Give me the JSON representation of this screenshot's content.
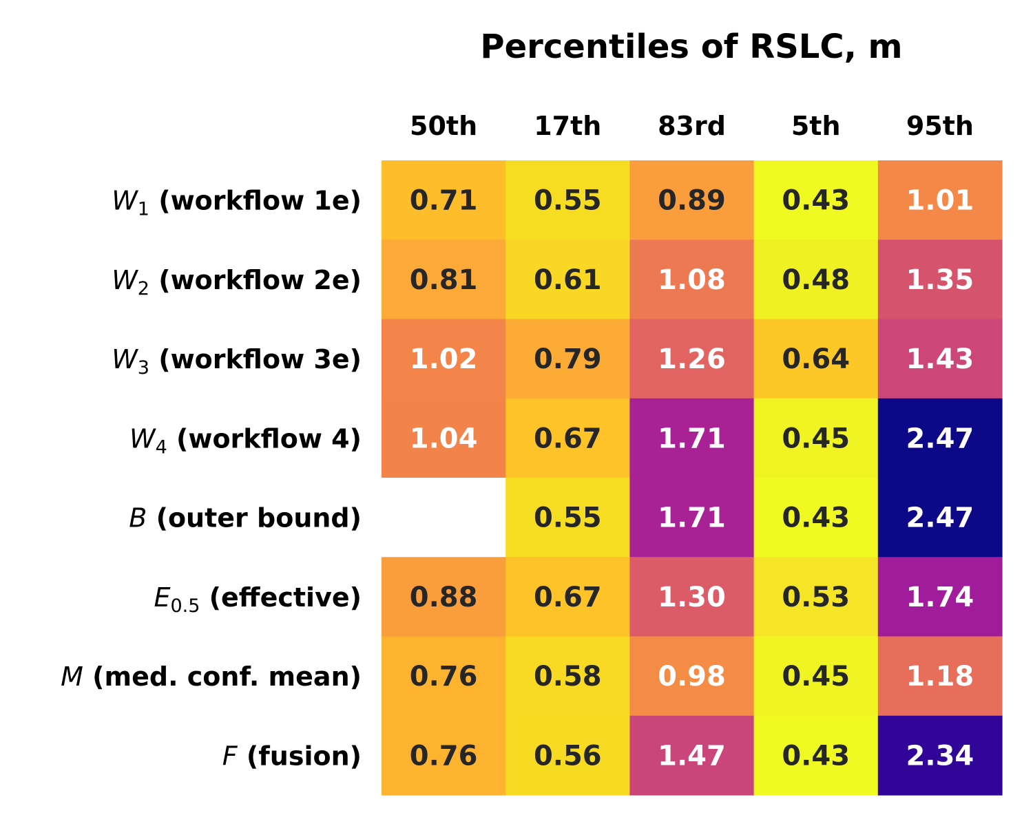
{
  "chart_data": {
    "type": "heatmap",
    "title": "Percentiles of RSLC, m",
    "columns": [
      "50th",
      "17th",
      "83rd",
      "5th",
      "95th"
    ],
    "rows": [
      {
        "symbol": "W",
        "subscript": "1",
        "description": "(workflow 1e)",
        "values": [
          0.71,
          0.55,
          0.89,
          0.43,
          1.01
        ],
        "labels": [
          "0.71",
          "0.55",
          "0.89",
          "0.43",
          "1.01"
        ],
        "colors": [
          "#febd2a",
          "#f6dd22",
          "#f99d3d",
          "#f0f921",
          "#f48849"
        ],
        "text_colors": [
          "#262626",
          "#262626",
          "#262626",
          "#262626",
          "#ffffff"
        ]
      },
      {
        "symbol": "W",
        "subscript": "2",
        "description": "(workflow 2e)",
        "values": [
          0.81,
          0.61,
          1.08,
          0.48,
          1.35
        ],
        "labels": [
          "0.81",
          "0.61",
          "1.08",
          "0.48",
          "1.35"
        ],
        "colors": [
          "#fba938",
          "#f8d725",
          "#ed7953",
          "#f0f123",
          "#d6536d"
        ],
        "text_colors": [
          "#262626",
          "#262626",
          "#ffffff",
          "#262626",
          "#ffffff"
        ]
      },
      {
        "symbol": "W",
        "subscript": "3",
        "description": "(workflow 3e)",
        "values": [
          1.02,
          0.79,
          1.26,
          0.64,
          1.43
        ],
        "labels": [
          "1.02",
          "0.79",
          "1.26",
          "0.64",
          "1.43"
        ],
        "colors": [
          "#f3854b",
          "#fcab36",
          "#e16462",
          "#fcc828",
          "#cc4778"
        ],
        "text_colors": [
          "#ffffff",
          "#262626",
          "#ffffff",
          "#262626",
          "#ffffff"
        ]
      },
      {
        "symbol": "W",
        "subscript": "4",
        "description": "(workflow 4)",
        "values": [
          1.04,
          0.67,
          1.71,
          0.45,
          2.47
        ],
        "labels": [
          "1.04",
          "0.67",
          "1.71",
          "0.45",
          "2.47"
        ],
        "colors": [
          "#f2844b",
          "#fdc328",
          "#a82296",
          "#f0f422",
          "#0d0887"
        ],
        "text_colors": [
          "#ffffff",
          "#262626",
          "#ffffff",
          "#262626",
          "#ffffff"
        ]
      },
      {
        "symbol": "B",
        "subscript": "",
        "description": "(outer bound)",
        "values": [
          null,
          0.55,
          1.71,
          0.43,
          2.47
        ],
        "labels": [
          "",
          "0.55",
          "1.71",
          "0.43",
          "2.47"
        ],
        "colors": [
          "#ffffff",
          "#f6dd22",
          "#a82296",
          "#f0f921",
          "#0d0887"
        ],
        "text_colors": [
          "#262626",
          "#262626",
          "#ffffff",
          "#262626",
          "#ffffff"
        ]
      },
      {
        "symbol": "E",
        "subscript": "0.5",
        "description": "(effective)",
        "values": [
          0.88,
          0.67,
          1.3,
          0.53,
          1.74
        ],
        "labels": [
          "0.88",
          "0.67",
          "1.30",
          "0.53",
          "1.74"
        ],
        "colors": [
          "#f99d3d",
          "#fdc328",
          "#db5c68",
          "#f5e526",
          "#a11c9a"
        ],
        "text_colors": [
          "#262626",
          "#262626",
          "#ffffff",
          "#262626",
          "#ffffff"
        ]
      },
      {
        "symbol": "M",
        "subscript": "",
        "description": "(med. conf. mean)",
        "values": [
          0.76,
          0.58,
          0.98,
          0.45,
          1.18
        ],
        "labels": [
          "0.76",
          "0.58",
          "0.98",
          "0.45",
          "1.18"
        ],
        "colors": [
          "#fdb32f",
          "#f8da24",
          "#f58c46",
          "#f0f422",
          "#e76e5b"
        ],
        "text_colors": [
          "#262626",
          "#262626",
          "#ffffff",
          "#262626",
          "#ffffff"
        ]
      },
      {
        "symbol": "F",
        "subscript": "",
        "description": "(fusion)",
        "values": [
          0.76,
          0.56,
          1.47,
          0.43,
          2.34
        ],
        "labels": [
          "0.76",
          "0.56",
          "1.47",
          "0.43",
          "2.34"
        ],
        "colors": [
          "#fdb32f",
          "#f7db23",
          "#c9457a",
          "#f0f921",
          "#300597"
        ],
        "text_colors": [
          "#262626",
          "#262626",
          "#ffffff",
          "#262626",
          "#ffffff"
        ]
      }
    ],
    "colormap": "plasma",
    "grid": false,
    "legend": "none"
  }
}
